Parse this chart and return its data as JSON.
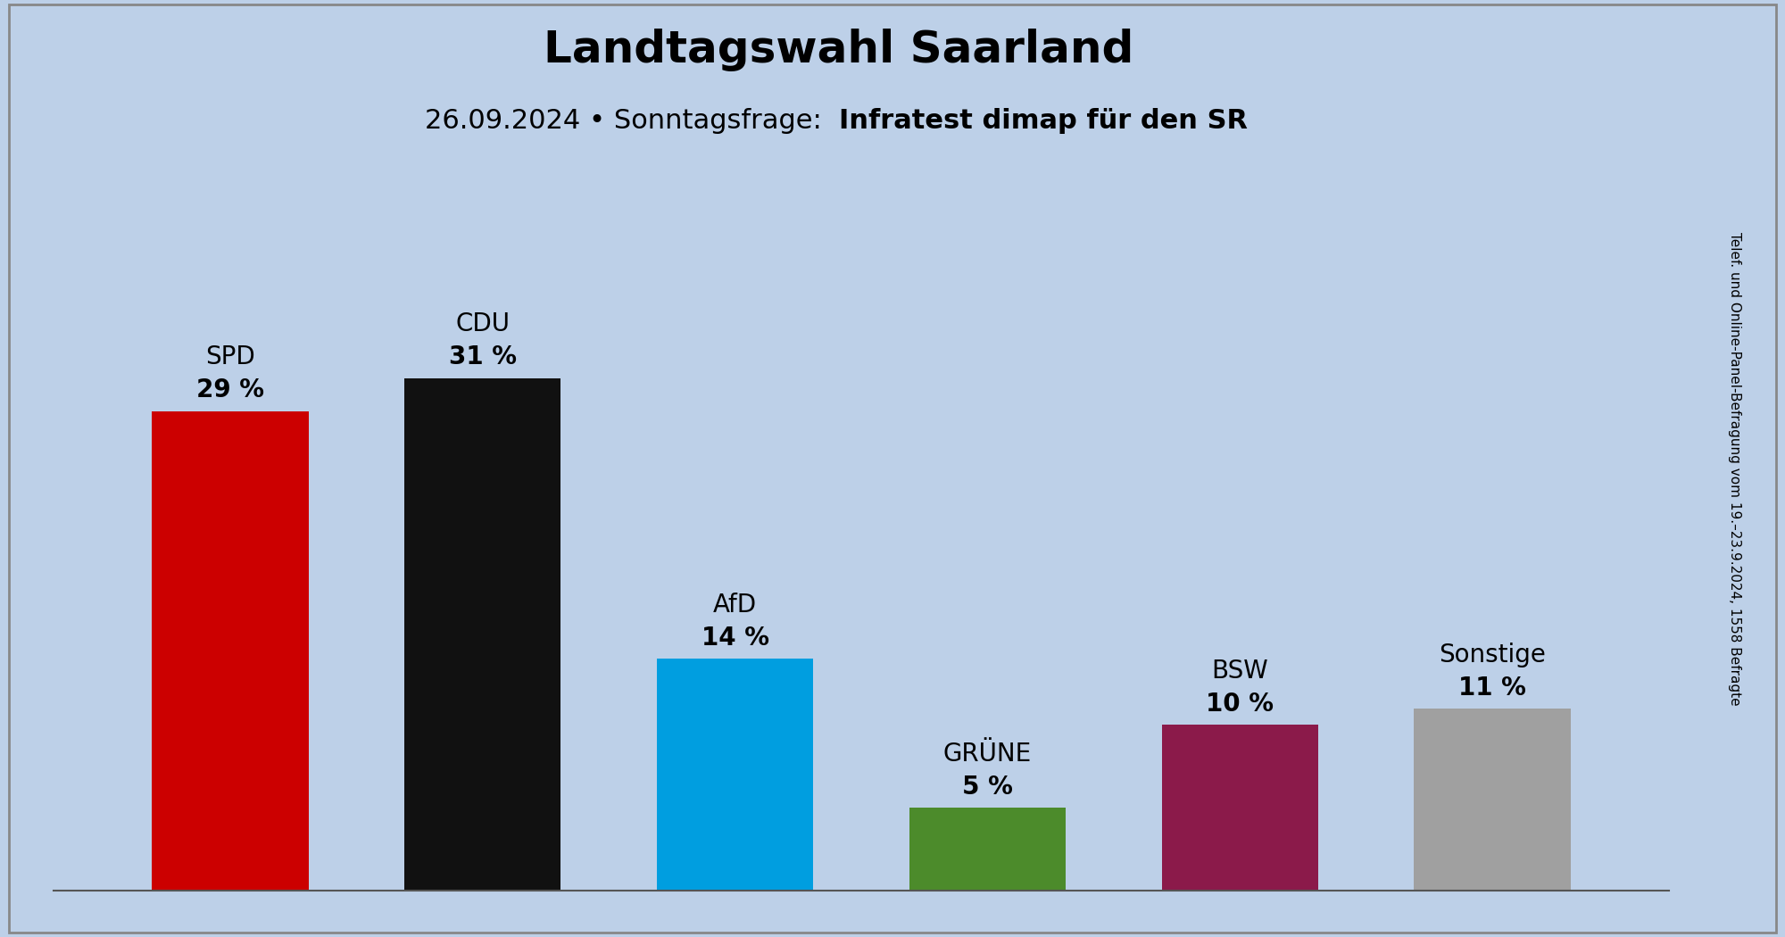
{
  "title": "Landtagswahl Saarland",
  "subtitle_normal": "26.09.2024 • Sonntagsfrage:  ",
  "subtitle_bold": "Infratest dimap für den SR",
  "side_text": "Telef. und Online-Panel-Befragung vom 19.–23.9.2024, 1558 Befragte",
  "parties": [
    "SPD",
    "CDU",
    "AfD",
    "GRÜNE",
    "BSW",
    "Sonstige"
  ],
  "values": [
    29,
    31,
    14,
    5,
    10,
    11
  ],
  "colors": [
    "#CC0000",
    "#111111",
    "#009EE0",
    "#4C8B2B",
    "#8B1A4A",
    "#A0A0A0"
  ],
  "background_color": "#BDD0E8",
  "ylim": [
    0,
    38
  ],
  "bar_width": 0.62,
  "title_fontsize": 36,
  "subtitle_fontsize": 22,
  "label_name_fontsize": 20,
  "label_pct_fontsize": 20,
  "side_text_fontsize": 11
}
